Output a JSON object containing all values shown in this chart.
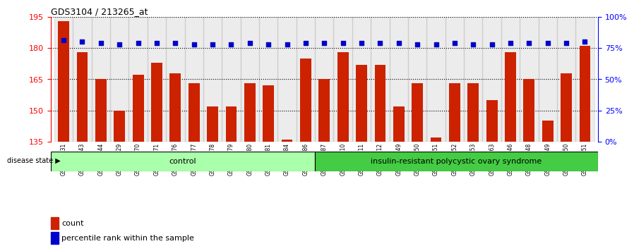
{
  "title": "GDS3104 / 213265_at",
  "samples": [
    "GSM155631",
    "GSM155643",
    "GSM155644",
    "GSM155729",
    "GSM156170",
    "GSM156171",
    "GSM156176",
    "GSM156177",
    "GSM156178",
    "GSM156179",
    "GSM156180",
    "GSM156181",
    "GSM156184",
    "GSM156186",
    "GSM156187",
    "GSM156510",
    "GSM156511",
    "GSM156512",
    "GSM156749",
    "GSM156750",
    "GSM156751",
    "GSM156752",
    "GSM156753",
    "GSM156763",
    "GSM156946",
    "GSM156948",
    "GSM156949",
    "GSM156950",
    "GSM156951"
  ],
  "counts": [
    193,
    178,
    165,
    150,
    167,
    173,
    168,
    163,
    152,
    152,
    163,
    162,
    136,
    175,
    165,
    178,
    172,
    172,
    152,
    163,
    137,
    163,
    163,
    155,
    178,
    165,
    145,
    168,
    181
  ],
  "percentiles": [
    81,
    80,
    79,
    78,
    79,
    79,
    79,
    78,
    78,
    78,
    79,
    78,
    78,
    79,
    79,
    79,
    79,
    79,
    79,
    78,
    78,
    79,
    78,
    78,
    79,
    79,
    79,
    79,
    80
  ],
  "control_count": 14,
  "disease_count": 15,
  "ylim_left": [
    135,
    195
  ],
  "ylim_right": [
    0,
    100
  ],
  "yticks_left": [
    135,
    150,
    165,
    180,
    195
  ],
  "yticks_right": [
    0,
    25,
    50,
    75,
    100
  ],
  "bar_color": "#cc2200",
  "percentile_color": "#0000cc",
  "control_color": "#aaffaa",
  "disease_color": "#44cc44",
  "bg_color": "#f0f0f0",
  "label_count": "count",
  "label_percentile": "percentile rank within the sample",
  "label_control": "control",
  "label_disease": "insulin-resistant polycystic ovary syndrome",
  "label_disease_state": "disease state"
}
